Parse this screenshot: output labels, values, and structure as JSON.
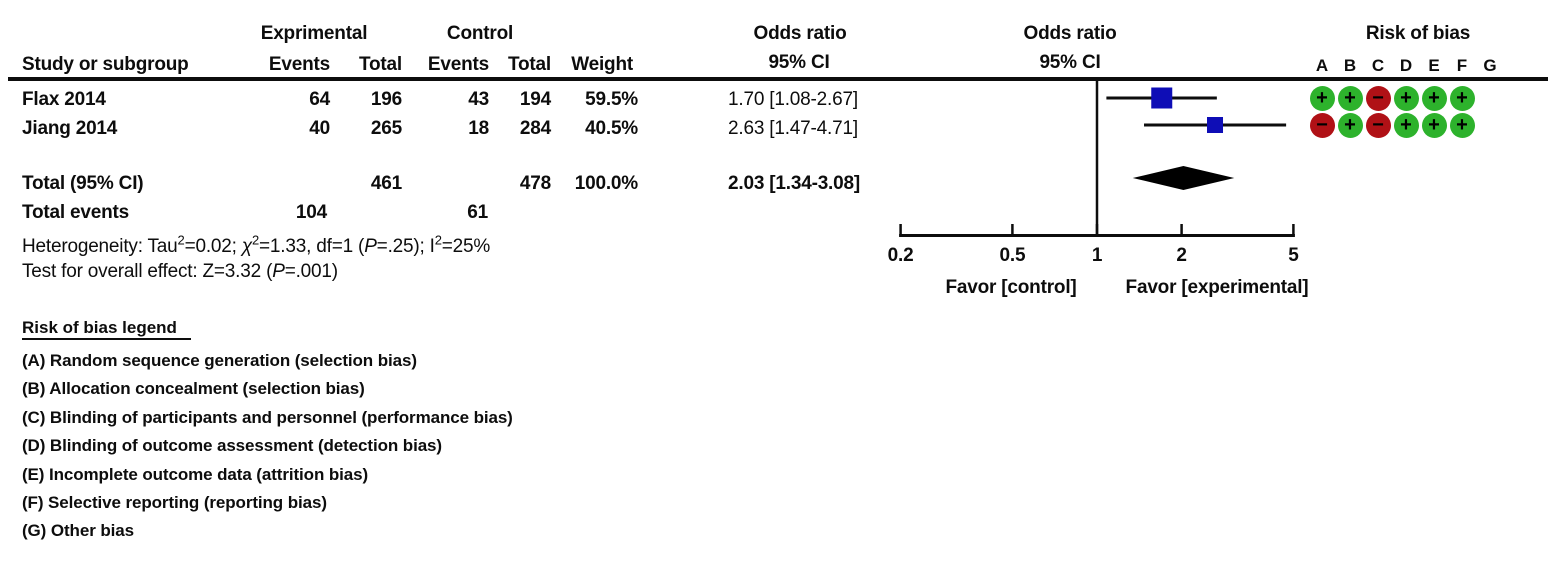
{
  "table": {
    "group_experimental": "Exprimental",
    "group_control": "Control",
    "study_col": "Study or subgroup",
    "events_col": "Events",
    "total_col": "Total",
    "weight_col": "Weight",
    "or_text_header_line1": "Odds ratio",
    "or_text_header_line2": "95% CI",
    "or_plot_header_line1": "Odds ratio",
    "or_plot_header_line2": "95% CI",
    "rob_header": "Risk of bias",
    "rob_columns": [
      "A",
      "B",
      "C",
      "D",
      "E",
      "F",
      "G"
    ],
    "rows": [
      {
        "study": "Flax 2014",
        "exp_events": "64",
        "exp_total": "196",
        "ctrl_events": "43",
        "ctrl_total": "194",
        "weight": "59.5%",
        "or_ci": "1.70 [1.08-2.67]",
        "bias": [
          "+",
          "+",
          "-",
          "+",
          "+",
          "+",
          ""
        ]
      },
      {
        "study": "Jiang 2014",
        "exp_events": "40",
        "exp_total": "265",
        "ctrl_events": "18",
        "ctrl_total": "284",
        "weight": "40.5%",
        "or_ci": "2.63 [1.47-4.71]",
        "bias": [
          "-",
          "+",
          "-",
          "+",
          "+",
          "+",
          ""
        ]
      }
    ],
    "total_row": {
      "label": "Total (95% CI)",
      "exp_total": "461",
      "ctrl_total": "478",
      "weight": "100.0%",
      "or_ci": "2.03 [1.34-3.08]"
    },
    "total_events": {
      "label": "Total events",
      "exp": "104",
      "ctrl": "61"
    },
    "heterogeneity_parts": [
      {
        "t": "Heterogeneity: Tau"
      },
      {
        "t": "2",
        "sup": true
      },
      {
        "t": "=0.02;  "
      },
      {
        "t": "χ",
        "i": true
      },
      {
        "t": "2",
        "sup": true
      },
      {
        "t": "=1.33, df=1 ("
      },
      {
        "t": "P",
        "i": true
      },
      {
        "t": "=.25); I"
      },
      {
        "t": "2",
        "sup": true
      },
      {
        "t": "=25%"
      }
    ],
    "overall_effect_parts": [
      {
        "t": "Test for overall effect: Z=3.32 ("
      },
      {
        "t": "P",
        "i": true
      },
      {
        "t": "=.001)"
      }
    ]
  },
  "plot": {
    "tick_labels": [
      "0.2",
      "0.5",
      "1",
      "2",
      "5"
    ],
    "favor_left": "Favor [control]",
    "favor_right": "Favor [experimental]"
  },
  "legend": {
    "title": "Risk of bias legend",
    "items": [
      {
        "key": "(A)",
        "text": " Random sequence generation (selection bias)"
      },
      {
        "key": "(B)",
        "text": " Allocation concealment (selection bias)"
      },
      {
        "key": "(C)",
        "text": " Blinding of participants and personnel (performance bias)"
      },
      {
        "key": "(D)",
        "text": " Blinding of outcome assessment (detection bias)"
      },
      {
        "key": "(E)",
        "text": " Incomplete outcome data (attrition bias)"
      },
      {
        "key": "(F)",
        "text": " Selective reporting (reporting bias)"
      },
      {
        "key": "(G)",
        "text": " Other bias"
      }
    ]
  },
  "colors": {
    "square_blue": "#0e0db6",
    "diamond_black": "#000000",
    "bias_green": "#2db22c",
    "bias_red": "#b01116",
    "line_black": "#0d0d0d"
  },
  "chart_data": {
    "type": "forest",
    "effect_measure": "Odds ratio",
    "ci_level": "95% CI",
    "scale": "log",
    "xlim": [
      0.2,
      5
    ],
    "x_ticks": [
      0.2,
      0.5,
      1,
      2,
      5
    ],
    "null_line": 1,
    "studies": [
      {
        "name": "Flax 2014",
        "or": 1.7,
        "ci_low": 1.08,
        "ci_high": 2.67,
        "weight_pct": 59.5
      },
      {
        "name": "Jiang 2014",
        "or": 2.63,
        "ci_low": 1.47,
        "ci_high": 4.71,
        "weight_pct": 40.5
      }
    ],
    "total": {
      "name": "Total (95% CI)",
      "or": 2.03,
      "ci_low": 1.34,
      "ci_high": 3.08,
      "weight_pct": 100.0
    },
    "heterogeneity": {
      "tau2": 0.02,
      "chi2": 1.33,
      "df": 1,
      "p": 0.25,
      "i2_pct": 25
    },
    "overall_effect": {
      "z": 3.32,
      "p": 0.001
    },
    "axis_label_left": "Favor [control]",
    "axis_label_right": "Favor [experimental]",
    "legend_position": "right",
    "grid": false
  }
}
